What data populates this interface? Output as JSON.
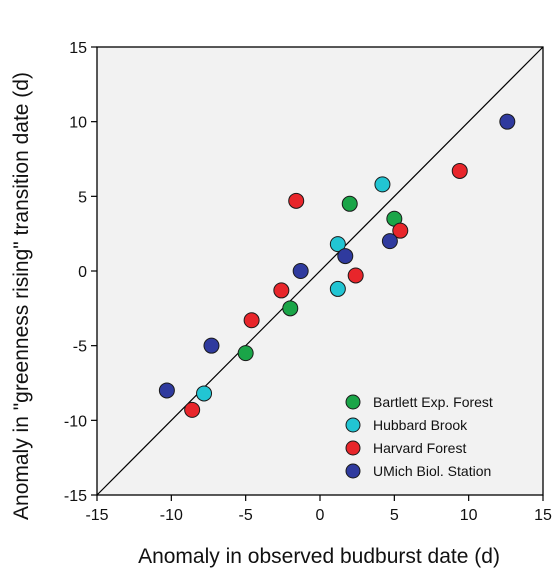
{
  "chart_data": {
    "type": "scatter",
    "title": "",
    "xlabel": "Anomaly in observed budburst date (d)",
    "ylabel": "Anomaly in \"greenness rising\" transition date (d)",
    "xlim": [
      -15,
      15
    ],
    "ylim": [
      -15,
      15
    ],
    "xticks": [
      -15,
      -10,
      -5,
      0,
      5,
      10,
      15
    ],
    "yticks": [
      -15,
      -10,
      -5,
      0,
      5,
      10,
      15
    ],
    "grid": false,
    "legend_position": "bottom-right",
    "reference_line": {
      "type": "1:1",
      "from": [
        -15,
        -15
      ],
      "to": [
        15,
        15
      ],
      "color": "#000000"
    },
    "plot_background": "#f2f2f2",
    "series": [
      {
        "name": "Bartlett Exp. Forest",
        "color": "#1aa548",
        "x": [
          2.0,
          5.0,
          -2.0,
          -5.0
        ],
        "y": [
          4.5,
          3.5,
          -2.5,
          -5.5
        ]
      },
      {
        "name": "Hubbard Brook",
        "color": "#22c5d3",
        "x": [
          4.2,
          1.2,
          1.2,
          -7.8
        ],
        "y": [
          5.8,
          1.8,
          -1.2,
          -8.2
        ]
      },
      {
        "name": "Harvard Forest",
        "color": "#e8262b",
        "x": [
          9.4,
          -1.6,
          5.4,
          2.4,
          -2.6,
          -4.6,
          -8.6
        ],
        "y": [
          6.7,
          4.7,
          2.7,
          -0.3,
          -1.3,
          -3.3,
          -9.3
        ]
      },
      {
        "name": "UMich Biol. Station",
        "color": "#2f3a9e",
        "x": [
          12.6,
          4.7,
          1.7,
          -1.3,
          -7.3,
          -10.3
        ],
        "y": [
          10.0,
          2.0,
          1.0,
          0.0,
          -5.0,
          -8.0
        ]
      }
    ]
  }
}
